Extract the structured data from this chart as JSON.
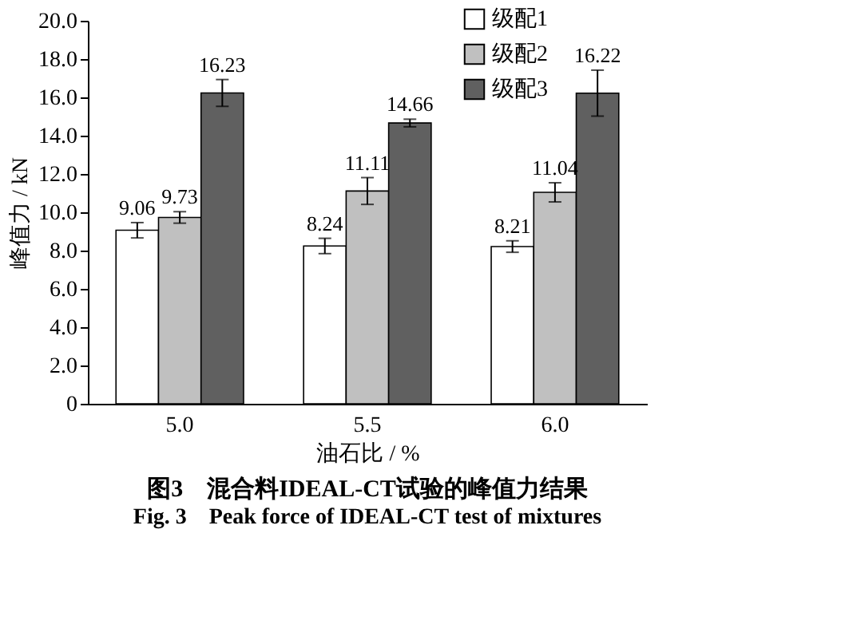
{
  "chart_data": {
    "type": "bar",
    "title": "图3　混合料IDEAL-CT试验的峰值力结果",
    "subtitle": "Fig. 3　Peak force of IDEAL-CT test of mixtures",
    "xlabel": "油石比 / %",
    "ylabel": "峰值力 / kN",
    "categories": [
      "5.0",
      "5.5",
      "6.0"
    ],
    "series": [
      {
        "name": "级配1",
        "color": "#ffffff",
        "values": [
          9.06,
          8.24,
          8.21
        ],
        "errors": [
          0.4,
          0.4,
          0.3
        ]
      },
      {
        "name": "级配2",
        "color": "#c0c0c0",
        "values": [
          9.73,
          11.11,
          11.04
        ],
        "errors": [
          0.3,
          0.7,
          0.5
        ]
      },
      {
        "name": "级配3",
        "color": "#606060",
        "values": [
          16.23,
          14.66,
          16.22
        ],
        "errors": [
          0.7,
          0.2,
          1.2
        ]
      }
    ],
    "ylim": [
      0,
      20
    ],
    "yticks": [
      {
        "value": 0,
        "label": "0"
      },
      {
        "value": 2,
        "label": "2.0"
      },
      {
        "value": 4,
        "label": "4.0"
      },
      {
        "value": 6,
        "label": "6.0"
      },
      {
        "value": 8,
        "label": "8.0"
      },
      {
        "value": 10,
        "label": "10.0"
      },
      {
        "value": 12,
        "label": "12.0"
      },
      {
        "value": 14,
        "label": "14.0"
      },
      {
        "value": 16,
        "label": "16.0"
      },
      {
        "value": 18,
        "label": "18.0"
      },
      {
        "value": 20,
        "label": "20.0"
      }
    ],
    "data_labels": true,
    "legend": "top right",
    "grid": false
  }
}
